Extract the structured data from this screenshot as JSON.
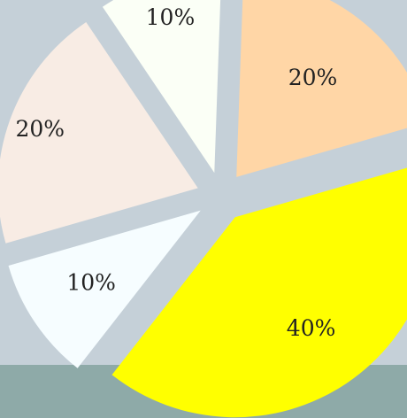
{
  "chart_data": {
    "type": "pie",
    "title": "",
    "exploded": true,
    "slices": [
      {
        "label": "20%",
        "value": 20,
        "color": "#ffd6a6"
      },
      {
        "label": "40%",
        "value": 40,
        "color": "#ffff00"
      },
      {
        "label": "10%",
        "value": 10,
        "color": "#f6fdff"
      },
      {
        "label": "20%",
        "value": 20,
        "color": "#f8ece4"
      },
      {
        "label": "10%",
        "value": 10,
        "color": "#fbfff6"
      }
    ],
    "legend": "none"
  },
  "colors": {
    "background": "#c5d0d8",
    "floor_band": "#8eaaa8"
  }
}
